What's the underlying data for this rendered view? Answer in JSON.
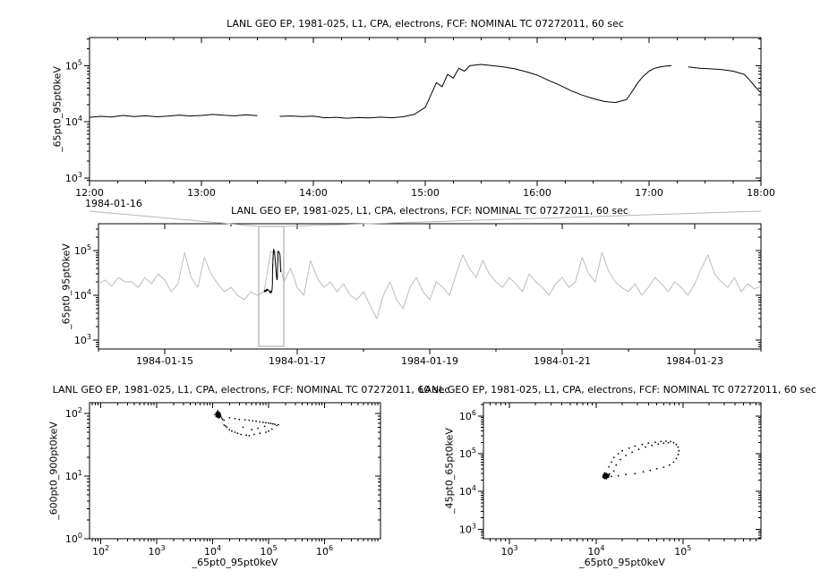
{
  "page": {
    "background": "#ffffff"
  },
  "chart_data": [
    {
      "id": "zoom-timeseries",
      "type": "line",
      "title": "LANL GEO EP, 1981-025, L1, CPA, electrons, FCF: NOMINAL TC 07272011, 60 sec",
      "ylabel": "_65pt0_95pt0keV",
      "x_axis": {
        "scale": "linear",
        "lim": [
          12,
          18
        ],
        "minor_step": 0.25,
        "date_label": "1984-01-16",
        "ticks": [
          {
            "v": 12,
            "label": "12:00"
          },
          {
            "v": 13,
            "label": "13:00"
          },
          {
            "v": 14,
            "label": "14:00"
          },
          {
            "v": 15,
            "label": "15:00"
          },
          {
            "v": 16,
            "label": "16:00"
          },
          {
            "v": 17,
            "label": "17:00"
          },
          {
            "v": 18,
            "label": "18:00"
          }
        ]
      },
      "y_axis": {
        "scale": "log",
        "lim_exp": [
          2.95,
          5.5
        ],
        "tick_exps": [
          3,
          4,
          5
        ]
      },
      "series": [
        {
          "name": "electron-flux-65-95keV",
          "color": "#000000",
          "x": [
            12,
            12.1,
            12.2,
            12.3,
            12.4,
            12.5,
            12.6,
            12.7,
            12.8,
            12.9,
            13,
            13.1,
            13.2,
            13.3,
            13.4,
            13.5,
            13.6,
            13.7,
            13.8,
            13.9,
            14,
            14.1,
            14.2,
            14.3,
            14.4,
            14.5,
            14.6,
            14.7,
            14.8,
            14.9,
            15,
            15.05,
            15.1,
            15.15,
            15.2,
            15.25,
            15.3,
            15.35,
            15.4,
            15.5,
            15.6,
            15.7,
            15.8,
            15.9,
            16,
            16.1,
            16.2,
            16.3,
            16.4,
            16.5,
            16.6,
            16.7,
            16.8,
            16.85,
            16.9,
            16.95,
            17,
            17.05,
            17.1,
            17.15,
            17.2,
            17.25,
            17.35,
            17.45,
            17.55,
            17.65,
            17.75,
            17.85,
            17.9,
            17.95,
            18
          ],
          "y": [
            12000.0,
            12500.0,
            12200.0,
            13000.0,
            12400.0,
            12800.0,
            12300.0,
            12600.0,
            13200.0,
            12700.0,
            13000.0,
            13500.0,
            13100.0,
            12800.0,
            13300.0,
            12900.0,
            null,
            12500.0,
            12700.0,
            12400.0,
            12600.0,
            11800.0,
            12000.0,
            11600.0,
            11900.0,
            11700.0,
            12100.0,
            11800.0,
            12300.0,
            13500.0,
            18000.0,
            30000.0,
            50000.0,
            42000.0,
            70000.0,
            60000.0,
            90000.0,
            80000.0,
            100000.0,
            105000.0,
            100000.0,
            95000.0,
            88000.0,
            78000.0,
            68000.0,
            55000.0,
            45000.0,
            36000.0,
            30000.0,
            26000.0,
            23000.0,
            22000.0,
            25000.0,
            35000.0,
            50000.0,
            65000.0,
            80000.0,
            90000.0,
            95000.0,
            98000.0,
            100000.0,
            null,
            95000.0,
            90000.0,
            88000.0,
            85000.0,
            80000.0,
            70000.0,
            55000.0,
            42000.0,
            33000.0
          ]
        }
      ]
    },
    {
      "id": "overview-timeseries",
      "type": "line",
      "title": "LANL GEO EP, 1981-025, L1, CPA, electrons, FCF: NOMINAL TC 07272011, 60 sec",
      "ylabel": "_65pt0_95pt0keV",
      "x_axis": {
        "scale": "linear",
        "lim": [
          14,
          24
        ],
        "minor_step": 1,
        "ticks": [
          {
            "v": 15,
            "label": "1984-01-15"
          },
          {
            "v": 17,
            "label": "1984-01-17"
          },
          {
            "v": 19,
            "label": "1984-01-19"
          },
          {
            "v": 21,
            "label": "1984-01-21"
          },
          {
            "v": 23,
            "label": "1984-01-23"
          }
        ]
      },
      "y_axis": {
        "scale": "log",
        "lim_exp": [
          2.8,
          5.6
        ],
        "tick_exps": [
          3,
          4,
          5
        ]
      },
      "series": [
        {
          "name": "electron-flux-65-95keV-overview",
          "color": "#bdbdbd",
          "x": [
            14,
            14.1,
            14.2,
            14.3,
            14.4,
            14.5,
            14.6,
            14.7,
            14.8,
            14.9,
            15,
            15.1,
            15.2,
            15.3,
            15.4,
            15.5,
            15.6,
            15.7,
            15.8,
            15.9,
            16,
            16.1,
            16.2,
            16.3,
            16.4,
            16.5,
            16.6,
            16.7,
            16.8,
            16.9,
            17,
            17.1,
            17.2,
            17.3,
            17.4,
            17.5,
            17.6,
            17.7,
            17.8,
            17.9,
            18,
            18.1,
            18.2,
            18.3,
            18.4,
            18.5,
            18.6,
            18.7,
            18.8,
            18.9,
            19,
            19.1,
            19.2,
            19.3,
            19.4,
            19.5,
            19.6,
            19.7,
            19.8,
            19.9,
            20,
            20.1,
            20.2,
            20.3,
            20.4,
            20.5,
            20.6,
            20.7,
            20.8,
            20.9,
            21,
            21.1,
            21.2,
            21.3,
            21.4,
            21.5,
            21.6,
            21.7,
            21.8,
            21.9,
            22,
            22.1,
            22.2,
            22.3,
            22.4,
            22.5,
            22.6,
            22.7,
            22.8,
            22.9,
            23,
            23.1,
            23.2,
            23.3,
            23.4,
            23.5,
            23.6,
            23.7,
            23.8,
            23.9,
            24
          ],
          "y": [
            18000.0,
            22000.0,
            16000.0,
            25000.0,
            20000.0,
            20000.0,
            15000.0,
            25000.0,
            18000.0,
            30000.0,
            22000.0,
            12000.0,
            18000.0,
            90000.0,
            25000.0,
            15000.0,
            70000.0,
            30000.0,
            18000.0,
            12000.0,
            15000.0,
            10000.0,
            8000.0,
            12000.0,
            10000.0,
            12000.0,
            95000.0,
            90000.0,
            20000.0,
            40000.0,
            15000.0,
            10000.0,
            60000.0,
            25000.0,
            15000.0,
            20000.0,
            12000.0,
            18000.0,
            10000.0,
            8000.0,
            12000.0,
            6000.0,
            3000.0,
            10000.0,
            20000.0,
            8000.0,
            5000.0,
            15000.0,
            25000.0,
            12000.0,
            8000.0,
            20000.0,
            15000.0,
            10000.0,
            30000.0,
            80000.0,
            40000.0,
            25000.0,
            60000.0,
            30000.0,
            20000.0,
            15000.0,
            25000.0,
            18000.0,
            12000.0,
            30000.0,
            20000.0,
            15000.0,
            10000.0,
            18000.0,
            25000.0,
            15000.0,
            20000.0,
            70000.0,
            30000.0,
            20000.0,
            90000.0,
            35000.0,
            20000.0,
            15000.0,
            12000.0,
            18000.0,
            10000.0,
            15000.0,
            25000.0,
            18000.0,
            12000.0,
            20000.0,
            15000.0,
            10000.0,
            18000.0,
            40000.0,
            80000.0,
            30000.0,
            20000.0,
            15000.0,
            25000.0,
            12000.0,
            18000.0,
            14000.0,
            16000.0
          ]
        }
      ],
      "highlight": {
        "source_panel": 0,
        "day_base": 16,
        "color": "#000000"
      },
      "selection": {
        "x0": 16.42,
        "x1": 16.8,
        "color": "#9e9e9e"
      }
    },
    {
      "id": "scatter-600-900",
      "type": "scatter",
      "title": "LANL GEO EP, 1981-025, L1, CPA, electrons, FCF: NOMINAL TC 07272011, 60 sec",
      "xlabel": "_65pt0_95pt0keV",
      "ylabel": "_600pt0_900pt0keV",
      "x_axis": {
        "scale": "log",
        "lim_exp": [
          1.8,
          7.0
        ],
        "tick_exps": [
          2,
          3,
          4,
          5,
          6
        ]
      },
      "y_axis": {
        "scale": "log",
        "lim_exp": [
          0,
          2.17
        ],
        "tick_exps": [
          0,
          1,
          2
        ]
      },
      "series": [
        {
          "name": "flux-flux-points",
          "color": "#000000",
          "x": [
            11000.0,
            11500.0,
            12000.0,
            12000.0,
            12500.0,
            12200.0,
            12800.0,
            13000.0,
            13000.0,
            13500.0,
            12400.0,
            11800.0,
            12600.0,
            13200.0,
            12100.0,
            11600.0,
            12900.0,
            13400.0,
            12300.0,
            11900.0,
            12700.0,
            13100.0,
            12500.0,
            13600.0,
            14000.0,
            14500.0,
            15000.0,
            16000.0,
            13800.0,
            12200.0,
            12400.0,
            12900.0,
            13300.0,
            11700.0,
            12000.0,
            12600.0,
            13000.0,
            12300.0,
            12800.0,
            13500.0,
            20000.0,
            25000.0,
            30000.0,
            38000.0,
            45000.0,
            52000.0,
            60000.0,
            70000.0,
            80000.0,
            90000.0,
            100000.0,
            110000.0,
            120000.0,
            130000.0,
            115000.0,
            100000.0,
            90000.0,
            70000.0,
            55000.0,
            45000.0,
            40000.0,
            32000.0,
            28000.0,
            25000.0,
            22000.0,
            20000.0,
            18000.0,
            17000.0,
            16000.0,
            35000.0,
            50000.0,
            65000.0,
            85000.0,
            140000.0,
            150000.0
          ],
          "y": [
            95,
            100,
            90,
            105,
            98,
            88,
            102,
            95,
            85,
            92,
            110,
            97,
            93,
            100,
            96,
            89,
            94,
            87,
            103,
            99,
            91,
            97,
            86,
            94,
            90,
            85,
            80,
            78,
            96,
            100,
            94,
            101,
            91,
            93,
            98,
            104,
            89,
            95,
            99,
            102,
            85,
            82,
            80,
            79,
            78,
            76,
            75,
            73,
            72,
            71,
            70,
            69,
            68,
            67,
            56,
            52,
            50,
            48,
            46,
            44,
            45,
            46,
            48,
            50,
            52,
            55,
            60,
            63,
            65,
            60,
            55,
            58,
            62,
            64,
            66
          ]
        }
      ]
    },
    {
      "id": "scatter-45-65",
      "type": "scatter",
      "title": "LANL GEO EP, 1981-025, L1, CPA, electrons, FCF: NOMINAL TC 07272011, 60 sec",
      "xlabel": "_65pt0_95pt0keV",
      "ylabel": "_45pt0_65pt0keV",
      "x_axis": {
        "scale": "log",
        "lim_exp": [
          2.7,
          5.9
        ],
        "tick_exps": [
          3,
          4,
          5
        ]
      },
      "y_axis": {
        "scale": "log",
        "lim_exp": [
          2.75,
          6.35
        ],
        "tick_exps": [
          3,
          4,
          5,
          6
        ]
      },
      "series": [
        {
          "name": "flux-flux-points",
          "color": "#000000",
          "x": [
            12000.0,
            12500.0,
            13000.0,
            12200.0,
            13500.0,
            12800.0,
            13200.0,
            12400.0,
            12900.0,
            13800.0,
            12100.0,
            13400.0,
            12600.0,
            13000.0,
            12300.0,
            14000.0,
            12700.0,
            13600.0,
            12200.0,
            13300.0,
            14200.0,
            12500.0,
            13100.0,
            12800.0,
            13900.0,
            12000.0,
            12600.0,
            13200.0,
            12400.0,
            13000.0,
            12200.0,
            13500.0,
            12700.0,
            12900.0,
            13300.0,
            14000.0,
            15000.0,
            16000.0,
            18000.0,
            20000.0,
            24000.0,
            28000.0,
            34000.0,
            40000.0,
            48000.0,
            56000.0,
            64000.0,
            72000.0,
            78000.0,
            84000.0,
            88000.0,
            90000.0,
            88000.0,
            84000.0,
            78000.0,
            70000.0,
            60000.0,
            50000.0,
            42000.0,
            35000.0,
            28000.0,
            22000.0,
            18000.0,
            15000.0,
            16000.0,
            17000.0,
            19000.0,
            22000.0,
            26000.0,
            31000.0,
            37000.0,
            44000.0,
            52000.0,
            60000.0,
            68000.0
          ],
          "y": [
            24000.0,
            26000.0,
            25000.0,
            28000.0,
            27000.0,
            23000.0,
            29000.0,
            25000.0,
            26000.0,
            24000.0,
            27000.0,
            28000.0,
            22000.0,
            30000.0,
            24000.0,
            26000.0,
            28000.0,
            25000.0,
            23000.0,
            26000.0,
            29000.0,
            31000.0,
            24000.0,
            27000.0,
            28000.0,
            25000.0,
            29000.0,
            22000.0,
            27000.0,
            26000.0,
            25000.0,
            24000.0,
            30000.0,
            23000.0,
            27000.0,
            45000.0,
            60000.0,
            80000.0,
            100000.0,
            120000.0,
            140000.0,
            160000.0,
            175000.0,
            190000.0,
            200000.0,
            210000.0,
            215000.0,
            210000.0,
            195000.0,
            175000.0,
            150000.0,
            120000.0,
            95000.0,
            75000.0,
            60000.0,
            50000.0,
            44000.0,
            40000.0,
            36000.0,
            33000.0,
            30000.0,
            28000.0,
            26000.0,
            25000.0,
            35000.0,
            50000.0,
            70000.0,
            90000.0,
            110000.0,
            130000.0,
            150000.0,
            165000.0,
            180000.0,
            190000.0,
            195000.0
          ]
        }
      ]
    }
  ]
}
